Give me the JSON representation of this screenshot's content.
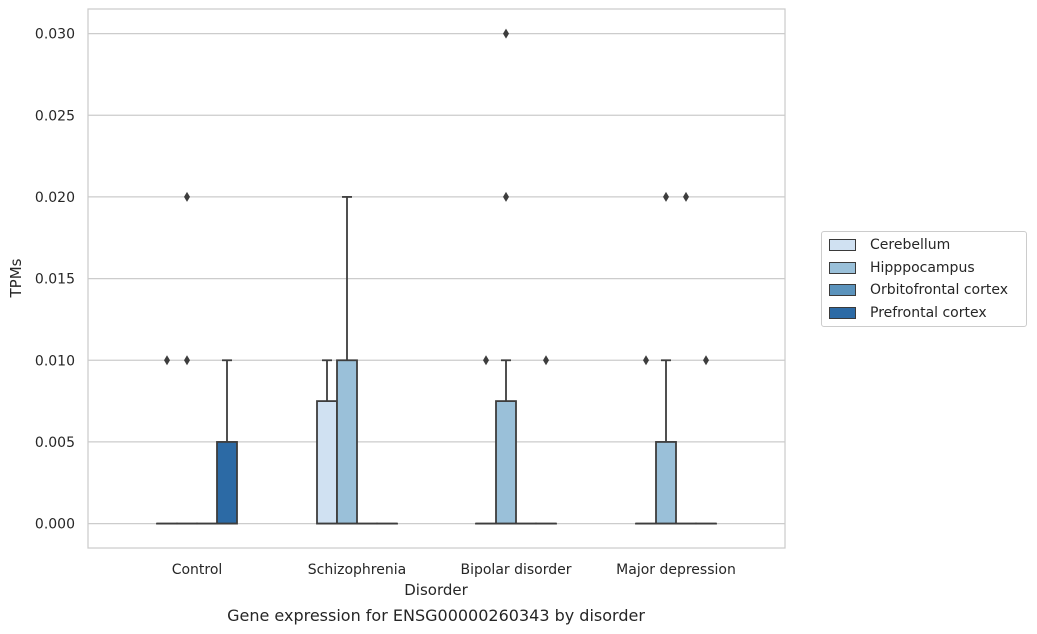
{
  "chart_data": {
    "type": "box",
    "xlabel": "Disorder",
    "ylabel": "TPMs",
    "ylim": [
      -0.0015,
      0.0315
    ],
    "yticks": [
      0.0,
      0.005,
      0.01,
      0.015,
      0.02,
      0.025,
      0.03
    ],
    "ytick_labels": [
      "0.000",
      "0.005",
      "0.010",
      "0.015",
      "0.020",
      "0.025",
      "0.030"
    ],
    "grid": "horizontal",
    "categories": [
      "Control",
      "Schizophrenia",
      "Bipolar disorder",
      "Major depression"
    ],
    "legend_position": "outside-right",
    "series": [
      {
        "name": "Cerebellum",
        "color": "#d0e1f2",
        "boxes": [
          {
            "q1": 0,
            "median": 0,
            "q3": 0,
            "whisker_low": 0,
            "whisker_high": 0,
            "outliers": [
              0.01
            ]
          },
          {
            "q1": 0,
            "median": 0,
            "q3": 0.0075,
            "whisker_low": 0,
            "whisker_high": 0.01,
            "outliers": []
          },
          {
            "q1": 0,
            "median": 0,
            "q3": 0,
            "whisker_low": 0,
            "whisker_high": 0,
            "outliers": [
              0.01
            ]
          },
          {
            "q1": 0,
            "median": 0,
            "q3": 0,
            "whisker_low": 0,
            "whisker_high": 0,
            "outliers": [
              0.01
            ]
          }
        ]
      },
      {
        "name": "Hipppocampus",
        "color": "#9ac0d9",
        "boxes": [
          {
            "q1": 0,
            "median": 0,
            "q3": 0,
            "whisker_low": 0,
            "whisker_high": 0,
            "outliers": [
              0.01,
              0.02
            ]
          },
          {
            "q1": 0,
            "median": 0,
            "q3": 0.01,
            "whisker_low": 0,
            "whisker_high": 0.02,
            "outliers": []
          },
          {
            "q1": 0,
            "median": 0,
            "q3": 0.0075,
            "whisker_low": 0,
            "whisker_high": 0.01,
            "outliers": [
              0.02,
              0.03
            ]
          },
          {
            "q1": 0,
            "median": 0,
            "q3": 0.005,
            "whisker_low": 0,
            "whisker_high": 0.01,
            "outliers": [
              0.02
            ]
          }
        ]
      },
      {
        "name": "Orbitofrontal cortex",
        "color": "#5b93bc",
        "boxes": [
          {
            "q1": 0,
            "median": 0,
            "q3": 0,
            "whisker_low": 0,
            "whisker_high": 0,
            "outliers": []
          },
          {
            "q1": 0,
            "median": 0,
            "q3": 0,
            "whisker_low": 0,
            "whisker_high": 0,
            "outliers": []
          },
          {
            "q1": 0,
            "median": 0,
            "q3": 0,
            "whisker_low": 0,
            "whisker_high": 0,
            "outliers": []
          },
          {
            "q1": 0,
            "median": 0,
            "q3": 0,
            "whisker_low": 0,
            "whisker_high": 0,
            "outliers": [
              0.02
            ]
          }
        ]
      },
      {
        "name": "Prefrontal cortex",
        "color": "#2c6aa5",
        "boxes": [
          {
            "q1": 0,
            "median": 0,
            "q3": 0.005,
            "whisker_low": 0,
            "whisker_high": 0.01,
            "outliers": []
          },
          {
            "q1": 0,
            "median": 0,
            "q3": 0,
            "whisker_low": 0,
            "whisker_high": 0,
            "outliers": []
          },
          {
            "q1": 0,
            "median": 0,
            "q3": 0,
            "whisker_low": 0,
            "whisker_high": 0,
            "outliers": [
              0.01
            ]
          },
          {
            "q1": 0,
            "median": 0,
            "q3": 0,
            "whisker_low": 0,
            "whisker_high": 0,
            "outliers": [
              0.01
            ]
          }
        ]
      }
    ],
    "caption": "Gene expression for ENSG00000260343 by disorder"
  }
}
